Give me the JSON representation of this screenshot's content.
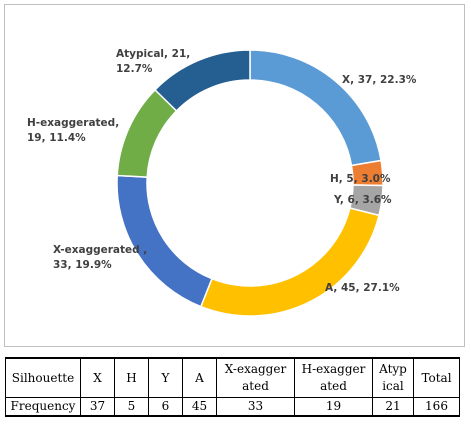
{
  "chart_data": {
    "type": "pie",
    "style": "donut",
    "slices": [
      {
        "name": "X",
        "value": 37,
        "percent": "22.3%",
        "label": "X, 37, 22.3%",
        "color": "#5b9bd5"
      },
      {
        "name": "H",
        "value": 5,
        "percent": "3.0%",
        "label": "H, 5, 3.0%",
        "color": "#ed7d31"
      },
      {
        "name": "Y",
        "value": 6,
        "percent": "3.6%",
        "label": "Y, 6, 3.6%",
        "color": "#a5a5a5"
      },
      {
        "name": "A",
        "value": 45,
        "percent": "27.1%",
        "label": "A, 45, 27.1%",
        "color": "#ffc000"
      },
      {
        "name": "X-exaggerated",
        "value": 33,
        "percent": "19.9%",
        "label_lines": [
          "X-exaggerated ,",
          "33, 19.9%"
        ],
        "color": "#4472c4"
      },
      {
        "name": "H-exaggerated",
        "value": 19,
        "percent": "11.4%",
        "label_lines": [
          "H-exaggerated,",
          "19, 11.4%"
        ],
        "color": "#70ad47"
      },
      {
        "name": "Atypical",
        "value": 21,
        "percent": "12.7%",
        "label_lines": [
          "Atypical, 21,",
          "12.7%"
        ],
        "color": "#255e91"
      }
    ]
  },
  "table": {
    "header": [
      "Silhouette",
      "X",
      "H",
      "Y",
      "A",
      "X-exaggerated",
      "H-exaggerated",
      "Atypical",
      "Total"
    ],
    "header_lines": [
      [
        "Silhouette"
      ],
      [
        "X"
      ],
      [
        "H"
      ],
      [
        "Y"
      ],
      [
        "A"
      ],
      [
        "X-exagger",
        "ated"
      ],
      [
        "H-exagger",
        "ated"
      ],
      [
        "Atyp",
        "ical"
      ],
      [
        "Total"
      ]
    ],
    "row": [
      "Frequency",
      "37",
      "5",
      "6",
      "45",
      "33",
      "19",
      "21",
      "166"
    ]
  }
}
